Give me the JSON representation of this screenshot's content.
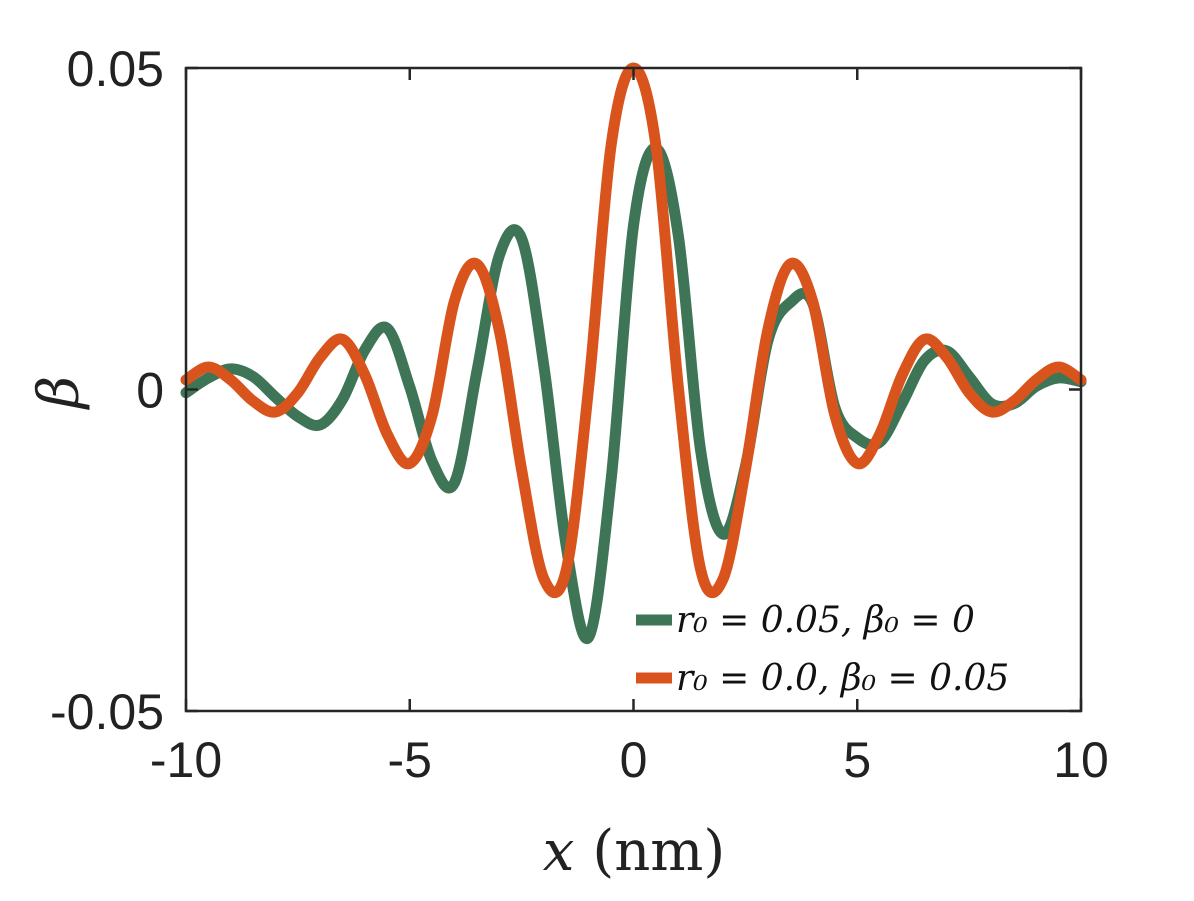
{
  "chart_data": {
    "type": "line",
    "title": "",
    "xlabel_var": "x",
    "xlabel_unit": "(nm)",
    "ylabel": "β",
    "xlim": [
      -10,
      10
    ],
    "ylim": [
      -0.05,
      0.05
    ],
    "xticks": [
      -10,
      -5,
      0,
      5,
      10
    ],
    "xtick_labels": [
      "-10",
      "-5",
      "0",
      "5",
      "10"
    ],
    "yticks": [
      -0.05,
      0,
      0.05
    ],
    "ytick_labels": [
      "-0.05",
      "0",
      "0.05"
    ],
    "grid": false,
    "legend_position": "bottom-right",
    "series": [
      {
        "name": "r₀ = 0.05, β₀ = 0",
        "color": "#3d7556",
        "x": [
          -10.0,
          -9.5,
          -9.0,
          -8.5,
          -8.0,
          -7.5,
          -7.0,
          -6.5,
          -6.0,
          -5.5,
          -5.0,
          -4.5,
          -4.0,
          -3.5,
          -3.0,
          -2.5,
          -2.0,
          -1.5,
          -1.0,
          -0.5,
          0.0,
          0.5,
          1.0,
          1.5,
          2.0,
          2.5,
          3.0,
          3.5,
          4.0,
          4.5,
          5.0,
          5.5,
          6.0,
          6.5,
          7.0,
          7.5,
          8.0,
          8.5,
          9.0,
          9.5,
          10.0
        ],
        "y": [
          -0.0005,
          0.0018,
          0.0032,
          0.002,
          -0.0012,
          -0.0042,
          -0.0055,
          -0.0015,
          0.0062,
          0.0095,
          0.0004,
          -0.0112,
          -0.0145,
          0.0028,
          0.0208,
          0.0235,
          0.0035,
          -0.0245,
          -0.0385,
          -0.014,
          0.0255,
          0.0375,
          0.024,
          -0.0095,
          -0.0225,
          -0.012,
          0.0075,
          0.0135,
          0.0135,
          -0.0028,
          -0.0075,
          -0.0082,
          -0.0022,
          0.0045,
          0.006,
          0.002,
          -0.0022,
          -0.0022,
          0.0005,
          0.0018,
          0.0012
        ]
      },
      {
        "name": "r₀ = 0.0, β₀ = 0.05",
        "color": "#d9541c",
        "x": [
          -10.0,
          -9.5,
          -9.0,
          -8.5,
          -8.0,
          -7.5,
          -7.0,
          -6.5,
          -6.0,
          -5.5,
          -5.0,
          -4.5,
          -4.0,
          -3.5,
          -3.0,
          -2.5,
          -2.0,
          -1.5,
          -1.0,
          -0.5,
          0.0,
          0.5,
          1.0,
          1.5,
          2.0,
          2.5,
          3.0,
          3.5,
          4.0,
          4.5,
          5.0,
          5.5,
          6.0,
          6.5,
          7.0,
          7.5,
          8.0,
          8.5,
          9.0,
          9.5,
          10.0
        ],
        "y": [
          0.0015,
          0.0035,
          0.0015,
          -0.0018,
          -0.0035,
          -0.0005,
          0.005,
          0.0078,
          0.0022,
          -0.007,
          -0.0115,
          -0.004,
          0.0138,
          0.0195,
          0.0092,
          -0.0125,
          -0.0295,
          -0.028,
          0.0005,
          0.038,
          0.05,
          0.038,
          0.0005,
          -0.028,
          -0.0295,
          -0.0125,
          0.0092,
          0.0195,
          0.0138,
          -0.004,
          -0.0115,
          -0.007,
          0.0022,
          0.0078,
          0.005,
          -0.0005,
          -0.0035,
          -0.0018,
          0.0015,
          0.0035,
          0.0015
        ]
      }
    ]
  }
}
